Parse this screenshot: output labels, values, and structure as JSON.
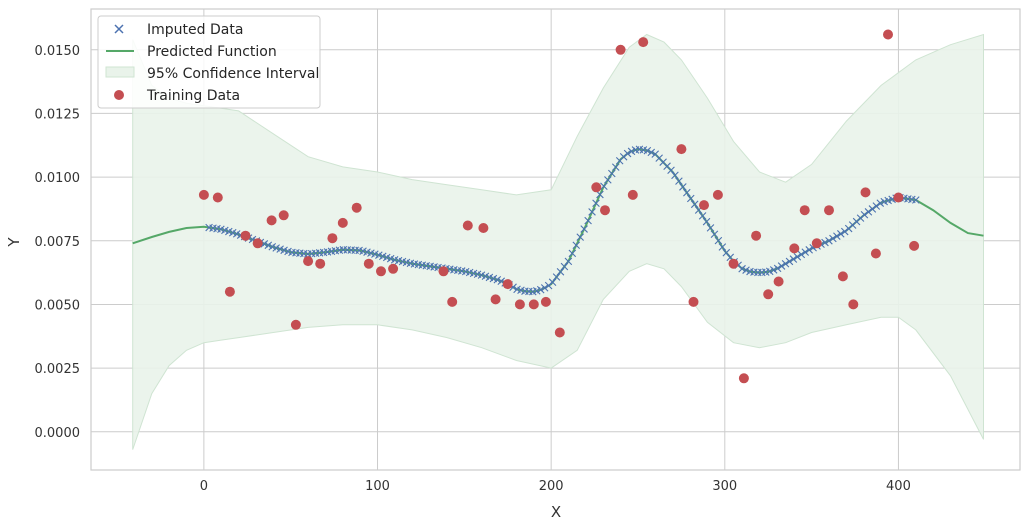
{
  "chart_data": {
    "type": "scatter",
    "title": "",
    "xlabel": "X",
    "ylabel": "Y",
    "xlim": [
      -65,
      470
    ],
    "ylim": [
      -0.0015,
      0.0166
    ],
    "xticks": [
      0,
      100,
      200,
      300,
      400
    ],
    "xtick_labels": [
      "0",
      "100",
      "200",
      "300",
      "400"
    ],
    "yticks": [
      0.0,
      0.0025,
      0.005,
      0.0075,
      0.01,
      0.0125,
      0.015
    ],
    "ytick_labels": [
      "0.0000",
      "0.0025",
      "0.0050",
      "0.0075",
      "0.0100",
      "0.0125",
      "0.0150"
    ],
    "grid": true,
    "legend_position": "top-left",
    "legend": [
      {
        "label": "Imputed Data",
        "symbol": "x-marker",
        "color": "#4c72b0"
      },
      {
        "label": "Predicted Function",
        "symbol": "line",
        "color": "#55a868"
      },
      {
        "label": "95% Confidence Interval",
        "symbol": "patch",
        "color": "#55a868"
      },
      {
        "label": "Training Data",
        "symbol": "circle",
        "color": "#c44e52"
      }
    ],
    "colors": {
      "imputed": "#4c72b0",
      "predicted": "#55a868",
      "ci_fill": "#e9f3ea",
      "ci_edge": "#cfe4d2",
      "training": "#c44e52",
      "grid": "#cccccc",
      "axes_edge": "#cccccc"
    },
    "predicted_function": {
      "x": [
        -41,
        -30,
        -20,
        -10,
        0,
        10,
        20,
        30,
        40,
        50,
        60,
        70,
        80,
        90,
        100,
        110,
        120,
        130,
        140,
        150,
        160,
        170,
        175,
        180,
        185,
        190,
        195,
        200,
        210,
        220,
        230,
        240,
        245,
        250,
        255,
        260,
        270,
        280,
        290,
        300,
        305,
        310,
        315,
        320,
        325,
        330,
        340,
        350,
        360,
        370,
        380,
        390,
        400,
        410,
        420,
        430,
        440,
        449
      ],
      "y": [
        0.0074,
        0.00765,
        0.00785,
        0.008,
        0.00805,
        0.00795,
        0.00775,
        0.0075,
        0.00725,
        0.00705,
        0.00698,
        0.00705,
        0.00715,
        0.00712,
        0.00695,
        0.00675,
        0.0066,
        0.0065,
        0.0064,
        0.0063,
        0.00615,
        0.00595,
        0.0058,
        0.0056,
        0.00552,
        0.0055,
        0.0056,
        0.0058,
        0.0067,
        0.0081,
        0.0096,
        0.0107,
        0.01098,
        0.0111,
        0.01105,
        0.0109,
        0.0102,
        0.0092,
        0.0082,
        0.0071,
        0.0067,
        0.0064,
        0.00628,
        0.00625,
        0.00628,
        0.0064,
        0.0068,
        0.0072,
        0.0075,
        0.0079,
        0.0085,
        0.009,
        0.0092,
        0.0091,
        0.0087,
        0.0082,
        0.0078,
        0.0077
      ]
    },
    "confidence_interval": {
      "x": [
        -41,
        -30,
        -20,
        -10,
        0,
        10,
        20,
        40,
        60,
        80,
        100,
        120,
        140,
        160,
        180,
        200,
        215,
        230,
        245,
        255,
        265,
        275,
        290,
        305,
        320,
        335,
        350,
        370,
        390,
        400,
        410,
        430,
        449
      ],
      "lower": [
        -0.0007,
        0.0015,
        0.0026,
        0.0032,
        0.0035,
        0.0036,
        0.0037,
        0.0039,
        0.0041,
        0.0042,
        0.0042,
        0.004,
        0.0037,
        0.0033,
        0.0028,
        0.0025,
        0.0032,
        0.0052,
        0.0063,
        0.0066,
        0.0064,
        0.0057,
        0.0043,
        0.0035,
        0.0033,
        0.0035,
        0.0039,
        0.0042,
        0.0045,
        0.0045,
        0.004,
        0.0022,
        -0.0003
      ],
      "upper": [
        0.0154,
        0.0136,
        0.0131,
        0.0129,
        0.0128,
        0.0127,
        0.0126,
        0.0117,
        0.0108,
        0.0104,
        0.0102,
        0.0099,
        0.0097,
        0.0095,
        0.0093,
        0.0095,
        0.0116,
        0.0135,
        0.0151,
        0.0156,
        0.0153,
        0.0146,
        0.0131,
        0.0114,
        0.0102,
        0.0098,
        0.0105,
        0.0122,
        0.0136,
        0.0141,
        0.0146,
        0.0152,
        0.0156
      ]
    },
    "imputed_range": [
      3,
      410
    ],
    "imputed_count": 180,
    "training_data": {
      "x": [
        0,
        8,
        15,
        24,
        31,
        39,
        46,
        53,
        60,
        67,
        74,
        80,
        88,
        95,
        102,
        109,
        138,
        143,
        152,
        161,
        168,
        175,
        182,
        190,
        197,
        205,
        226,
        231,
        240,
        247,
        253,
        275,
        282,
        288,
        296,
        305,
        311,
        318,
        325,
        331,
        340,
        346,
        353,
        360,
        368,
        374,
        381,
        387,
        394,
        400,
        409
      ],
      "y": [
        0.0093,
        0.0092,
        0.0055,
        0.0077,
        0.0074,
        0.0083,
        0.0085,
        0.0042,
        0.0067,
        0.0066,
        0.0076,
        0.0082,
        0.0088,
        0.0066,
        0.0063,
        0.0064,
        0.0063,
        0.0051,
        0.0081,
        0.008,
        0.0052,
        0.0058,
        0.005,
        0.005,
        0.0051,
        0.0039,
        0.0096,
        0.0087,
        0.015,
        0.0093,
        0.0153,
        0.0111,
        0.0051,
        0.0089,
        0.0093,
        0.0066,
        0.0021,
        0.0077,
        0.0054,
        0.0059,
        0.0072,
        0.0087,
        0.0074,
        0.0087,
        0.0061,
        0.005,
        0.0094,
        0.007,
        0.0156,
        0.0092,
        0.0073
      ]
    }
  }
}
